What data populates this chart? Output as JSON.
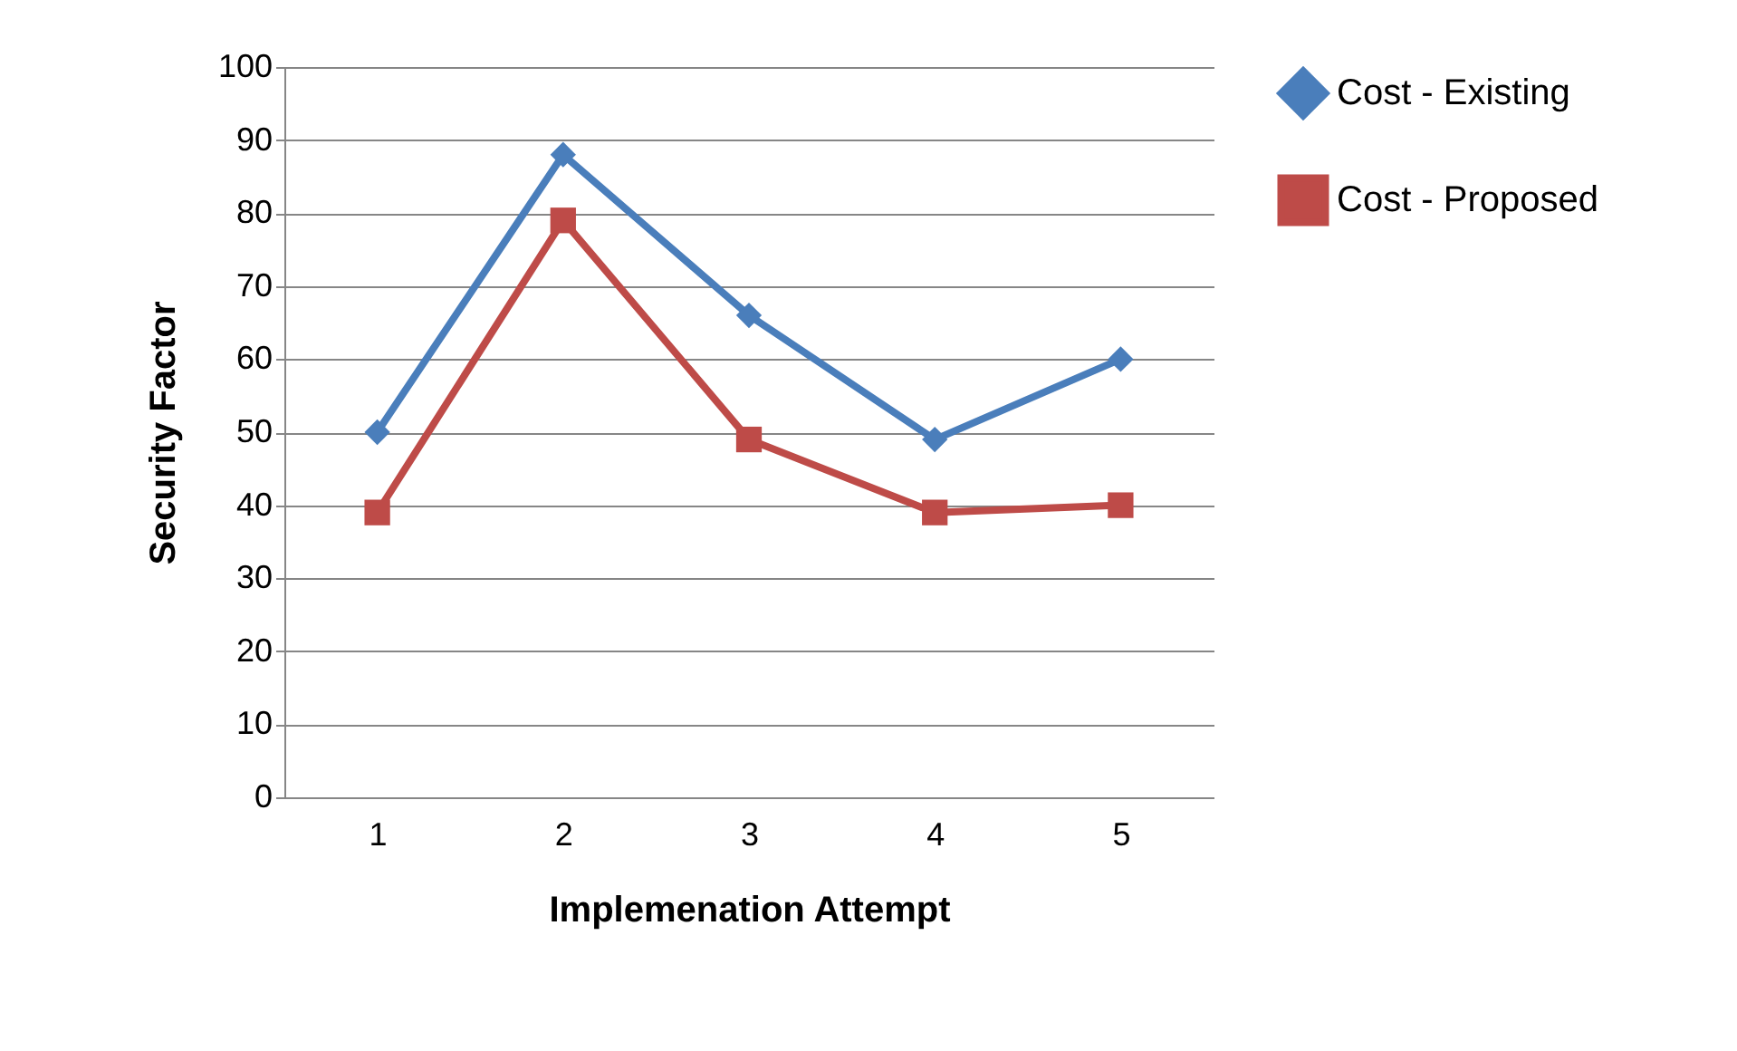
{
  "chart_data": {
    "type": "line",
    "xlabel": "Implemenation Attempt",
    "ylabel": "Security Factor",
    "categories": [
      "1",
      "2",
      "3",
      "4",
      "5"
    ],
    "series": [
      {
        "name": "Cost - Existing",
        "color": "#4a7ebb",
        "marker": "diamond",
        "values": [
          50,
          88,
          66,
          49,
          60
        ]
      },
      {
        "name": "Cost - Proposed",
        "color": "#be4b48",
        "marker": "square",
        "values": [
          39,
          79,
          49,
          39,
          40
        ]
      }
    ],
    "ylim": [
      0,
      100
    ],
    "yticks": [
      0,
      10,
      20,
      30,
      40,
      50,
      60,
      70,
      80,
      90,
      100
    ],
    "grid": "y",
    "legend": "right",
    "line_style": "solid"
  }
}
